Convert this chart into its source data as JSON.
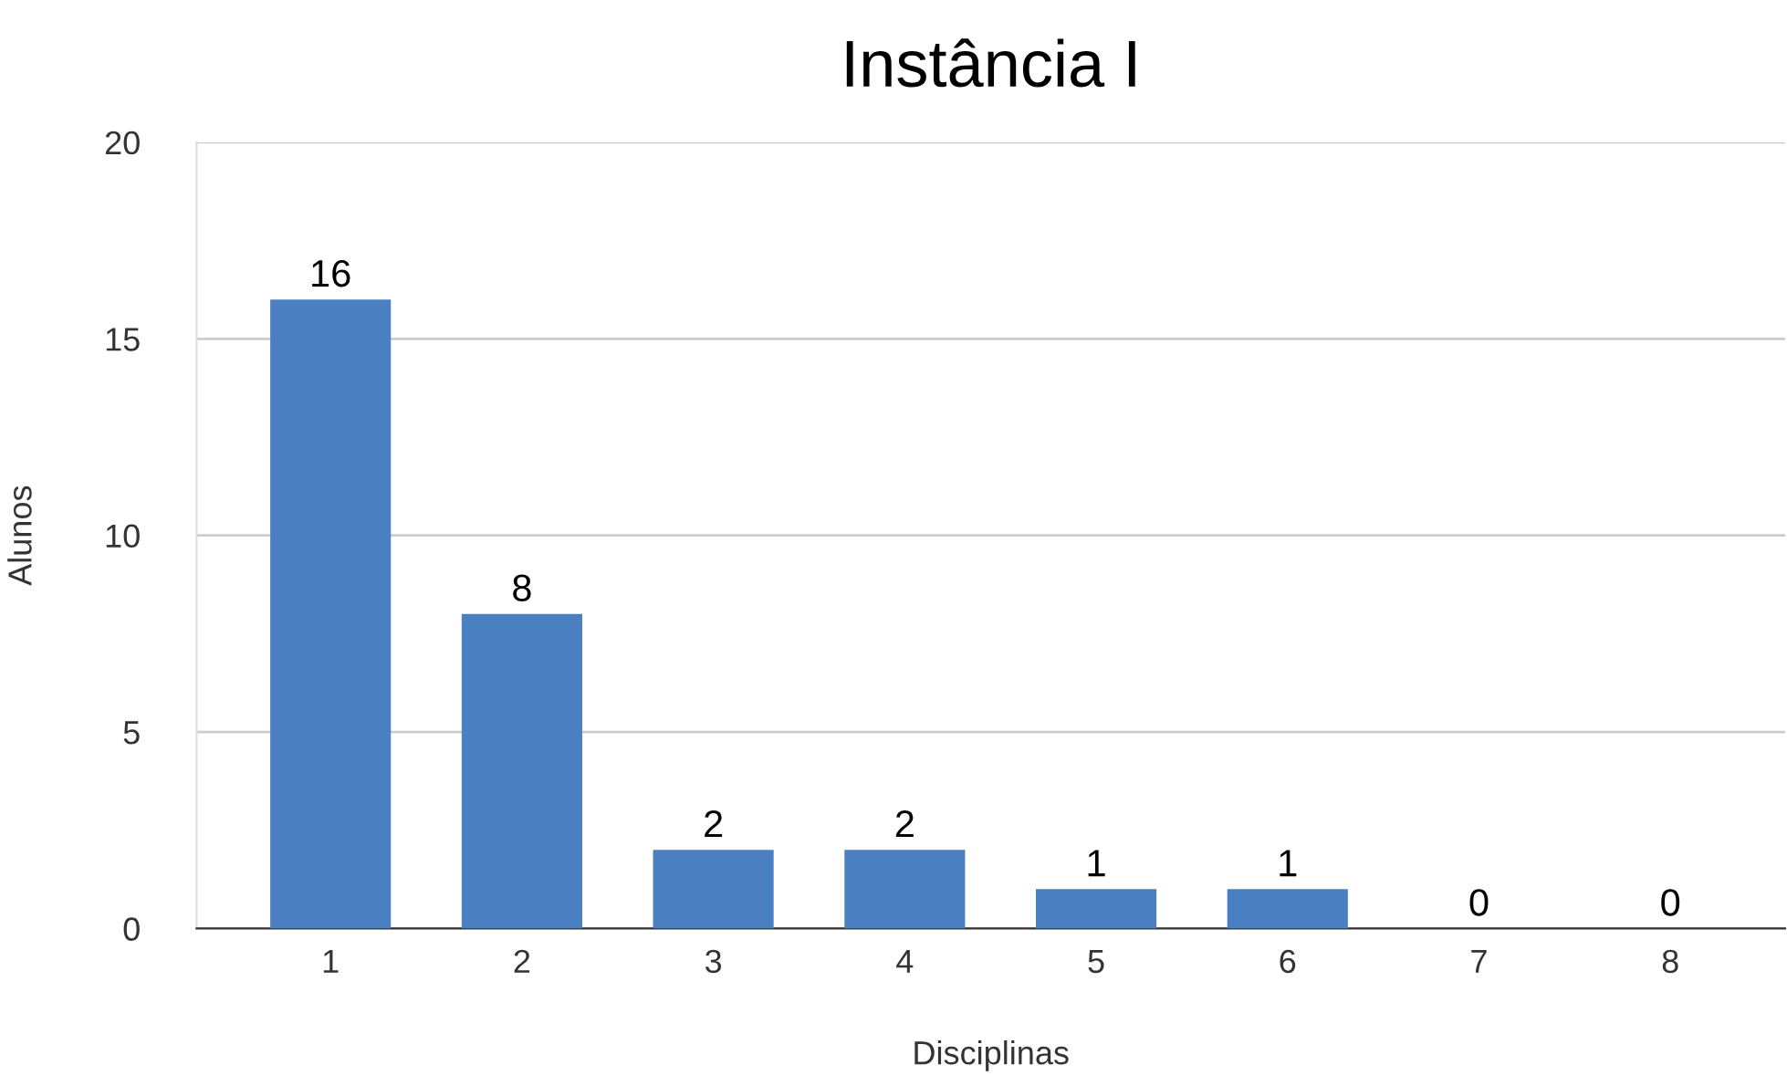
{
  "chart_data": {
    "type": "bar",
    "title": "Instância I",
    "xlabel": "Disciplinas",
    "ylabel": "Alunos",
    "categories": [
      "1",
      "2",
      "3",
      "4",
      "5",
      "6",
      "7",
      "8"
    ],
    "values": [
      16,
      8,
      2,
      2,
      1,
      1,
      0,
      0
    ],
    "color": "#4a7fc1",
    "ylim": [
      0,
      20
    ],
    "yticks": [
      0,
      5,
      10,
      15,
      20
    ],
    "grid": "y",
    "data_labels": true
  }
}
